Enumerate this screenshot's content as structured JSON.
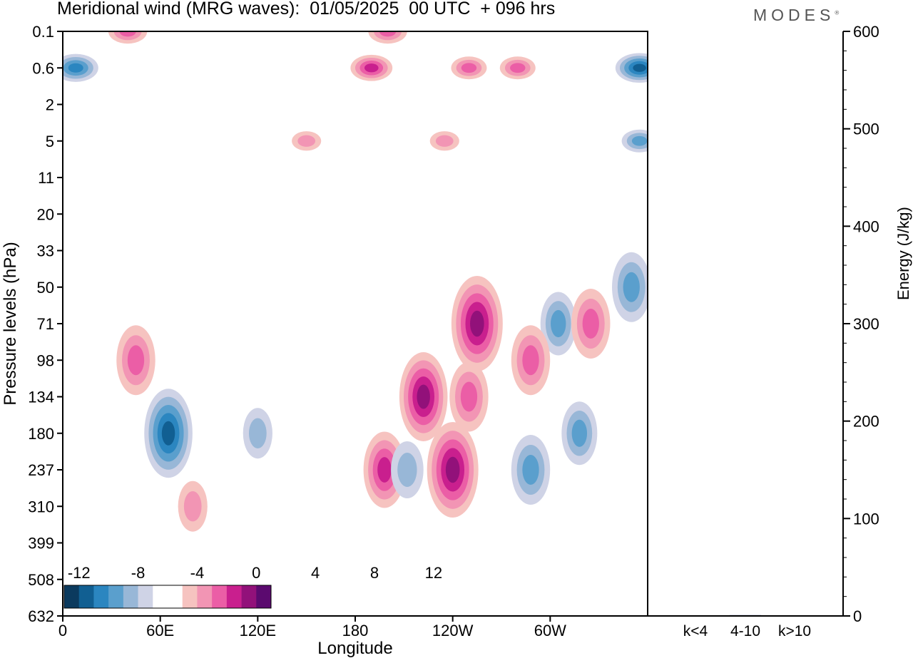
{
  "header": {
    "title": "Meridional wind (MRG waves):  01/05/2025  00 UTC  + 096 hrs",
    "logo": "MODES",
    "logo_mark": "®"
  },
  "colors": {
    "neg": [
      "#0b3a5e",
      "#115f92",
      "#2b86c0",
      "#5a9fcd",
      "#98b7d7",
      "#cfd3e6"
    ],
    "zero": "#ffffff",
    "pos": [
      "#f6c3c0",
      "#f295b4",
      "#eb5ea6",
      "#c91f8e",
      "#92117a",
      "#5b0a6f"
    ]
  },
  "chart_data": [
    {
      "type": "heatmap",
      "title": "Meridional wind (MRG waves):  01/05/2025  00 UTC  + 096 hrs",
      "xlabel": "Longitude",
      "ylabel": "Pressure levels (hPa)",
      "x_ticks": [
        "0",
        "60E",
        "120E",
        "180",
        "120W",
        "60W"
      ],
      "x_range": [
        0,
        360
      ],
      "y_levels": [
        "0.1",
        "0.6",
        "2",
        "5",
        "11",
        "20",
        "33",
        "50",
        "71",
        "98",
        "134",
        "180",
        "237",
        "310",
        "399",
        "508",
        "632"
      ],
      "colorbar": {
        "levels": [
          -14,
          -12,
          -10,
          -8,
          -6,
          -4,
          -2,
          2,
          4,
          6,
          8,
          10,
          12,
          14
        ],
        "tick_labels": [
          "-12",
          "-8",
          "-4",
          "0",
          "4",
          "8",
          "12"
        ],
        "placement": "bottom-left"
      },
      "features": [
        {
          "lon": 40,
          "p": "0.1",
          "value": 6
        },
        {
          "lon": 200,
          "p": "0.1",
          "value": 6
        },
        {
          "lon": 8,
          "p": "0.6",
          "value": -8
        },
        {
          "lon": 355,
          "p": "0.6",
          "value": -9
        },
        {
          "lon": 190,
          "p": "0.6",
          "value": 7
        },
        {
          "lon": 250,
          "p": "0.6",
          "value": 5
        },
        {
          "lon": 280,
          "p": "0.6",
          "value": 5
        },
        {
          "lon": 150,
          "p": "5",
          "value": 3
        },
        {
          "lon": 235,
          "p": "5",
          "value": 3
        },
        {
          "lon": 355,
          "p": "5",
          "value": -5
        },
        {
          "lon": 350,
          "p": "50",
          "value": -6
        },
        {
          "lon": 45,
          "p": "98",
          "value": 6
        },
        {
          "lon": 65,
          "p": "180",
          "value": -9
        },
        {
          "lon": 198,
          "p": "237",
          "value": 7
        },
        {
          "lon": 222,
          "p": "134",
          "value": 9
        },
        {
          "lon": 240,
          "p": "237",
          "value": 10
        },
        {
          "lon": 255,
          "p": "71",
          "value": 10
        },
        {
          "lon": 250,
          "p": "134",
          "value": 6
        },
        {
          "lon": 288,
          "p": "237",
          "value": -6
        },
        {
          "lon": 305,
          "p": "71",
          "value": -5
        },
        {
          "lon": 318,
          "p": "180",
          "value": -5
        },
        {
          "lon": 325,
          "p": "71",
          "value": 6
        },
        {
          "lon": 288,
          "p": "98",
          "value": 6
        },
        {
          "lon": 212,
          "p": "237",
          "value": -4
        },
        {
          "lon": 120,
          "p": "180",
          "value": -3
        },
        {
          "lon": 80,
          "p": "310",
          "value": 3
        }
      ]
    },
    {
      "type": "bar",
      "ylabel": "Energy (J/kg)",
      "categories": [
        "k<4",
        "4-10",
        "k>10"
      ],
      "values": [
        0.5,
        1,
        0.5
      ],
      "ylim": [
        0,
        600
      ],
      "y_ticks": [
        0,
        100,
        200,
        300,
        400,
        500,
        600
      ]
    }
  ]
}
